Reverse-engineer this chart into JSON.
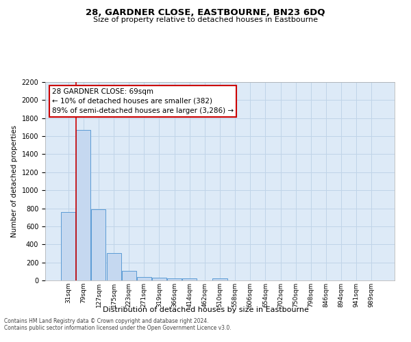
{
  "title": "28, GARDNER CLOSE, EASTBOURNE, BN23 6DQ",
  "subtitle": "Size of property relative to detached houses in Eastbourne",
  "xlabel": "Distribution of detached houses by size in Eastbourne",
  "ylabel": "Number of detached properties",
  "categories": [
    "31sqm",
    "79sqm",
    "127sqm",
    "175sqm",
    "223sqm",
    "271sqm",
    "319sqm",
    "366sqm",
    "414sqm",
    "462sqm",
    "510sqm",
    "558sqm",
    "606sqm",
    "654sqm",
    "702sqm",
    "750sqm",
    "798sqm",
    "846sqm",
    "894sqm",
    "941sqm",
    "989sqm"
  ],
  "values": [
    760,
    1670,
    790,
    300,
    110,
    40,
    30,
    20,
    20,
    0,
    20,
    0,
    0,
    0,
    0,
    0,
    0,
    0,
    0,
    0,
    0
  ],
  "bar_color": "#c5d8f0",
  "bar_edge_color": "#5b9bd5",
  "annotation_text_line1": "28 GARDNER CLOSE: 69sqm",
  "annotation_text_line2": "← 10% of detached houses are smaller (382)",
  "annotation_text_line3": "89% of semi-detached houses are larger (3,286) →",
  "annotation_box_facecolor": "#ffffff",
  "annotation_box_edgecolor": "#cc0000",
  "red_line_x": 0.525,
  "ylim": [
    0,
    2200
  ],
  "yticks": [
    0,
    200,
    400,
    600,
    800,
    1000,
    1200,
    1400,
    1600,
    1800,
    2000,
    2200
  ],
  "grid_color": "#c0d4e8",
  "bg_color": "#ddeaf7",
  "footer_line1": "Contains HM Land Registry data © Crown copyright and database right 2024.",
  "footer_line2": "Contains public sector information licensed under the Open Government Licence v3.0."
}
